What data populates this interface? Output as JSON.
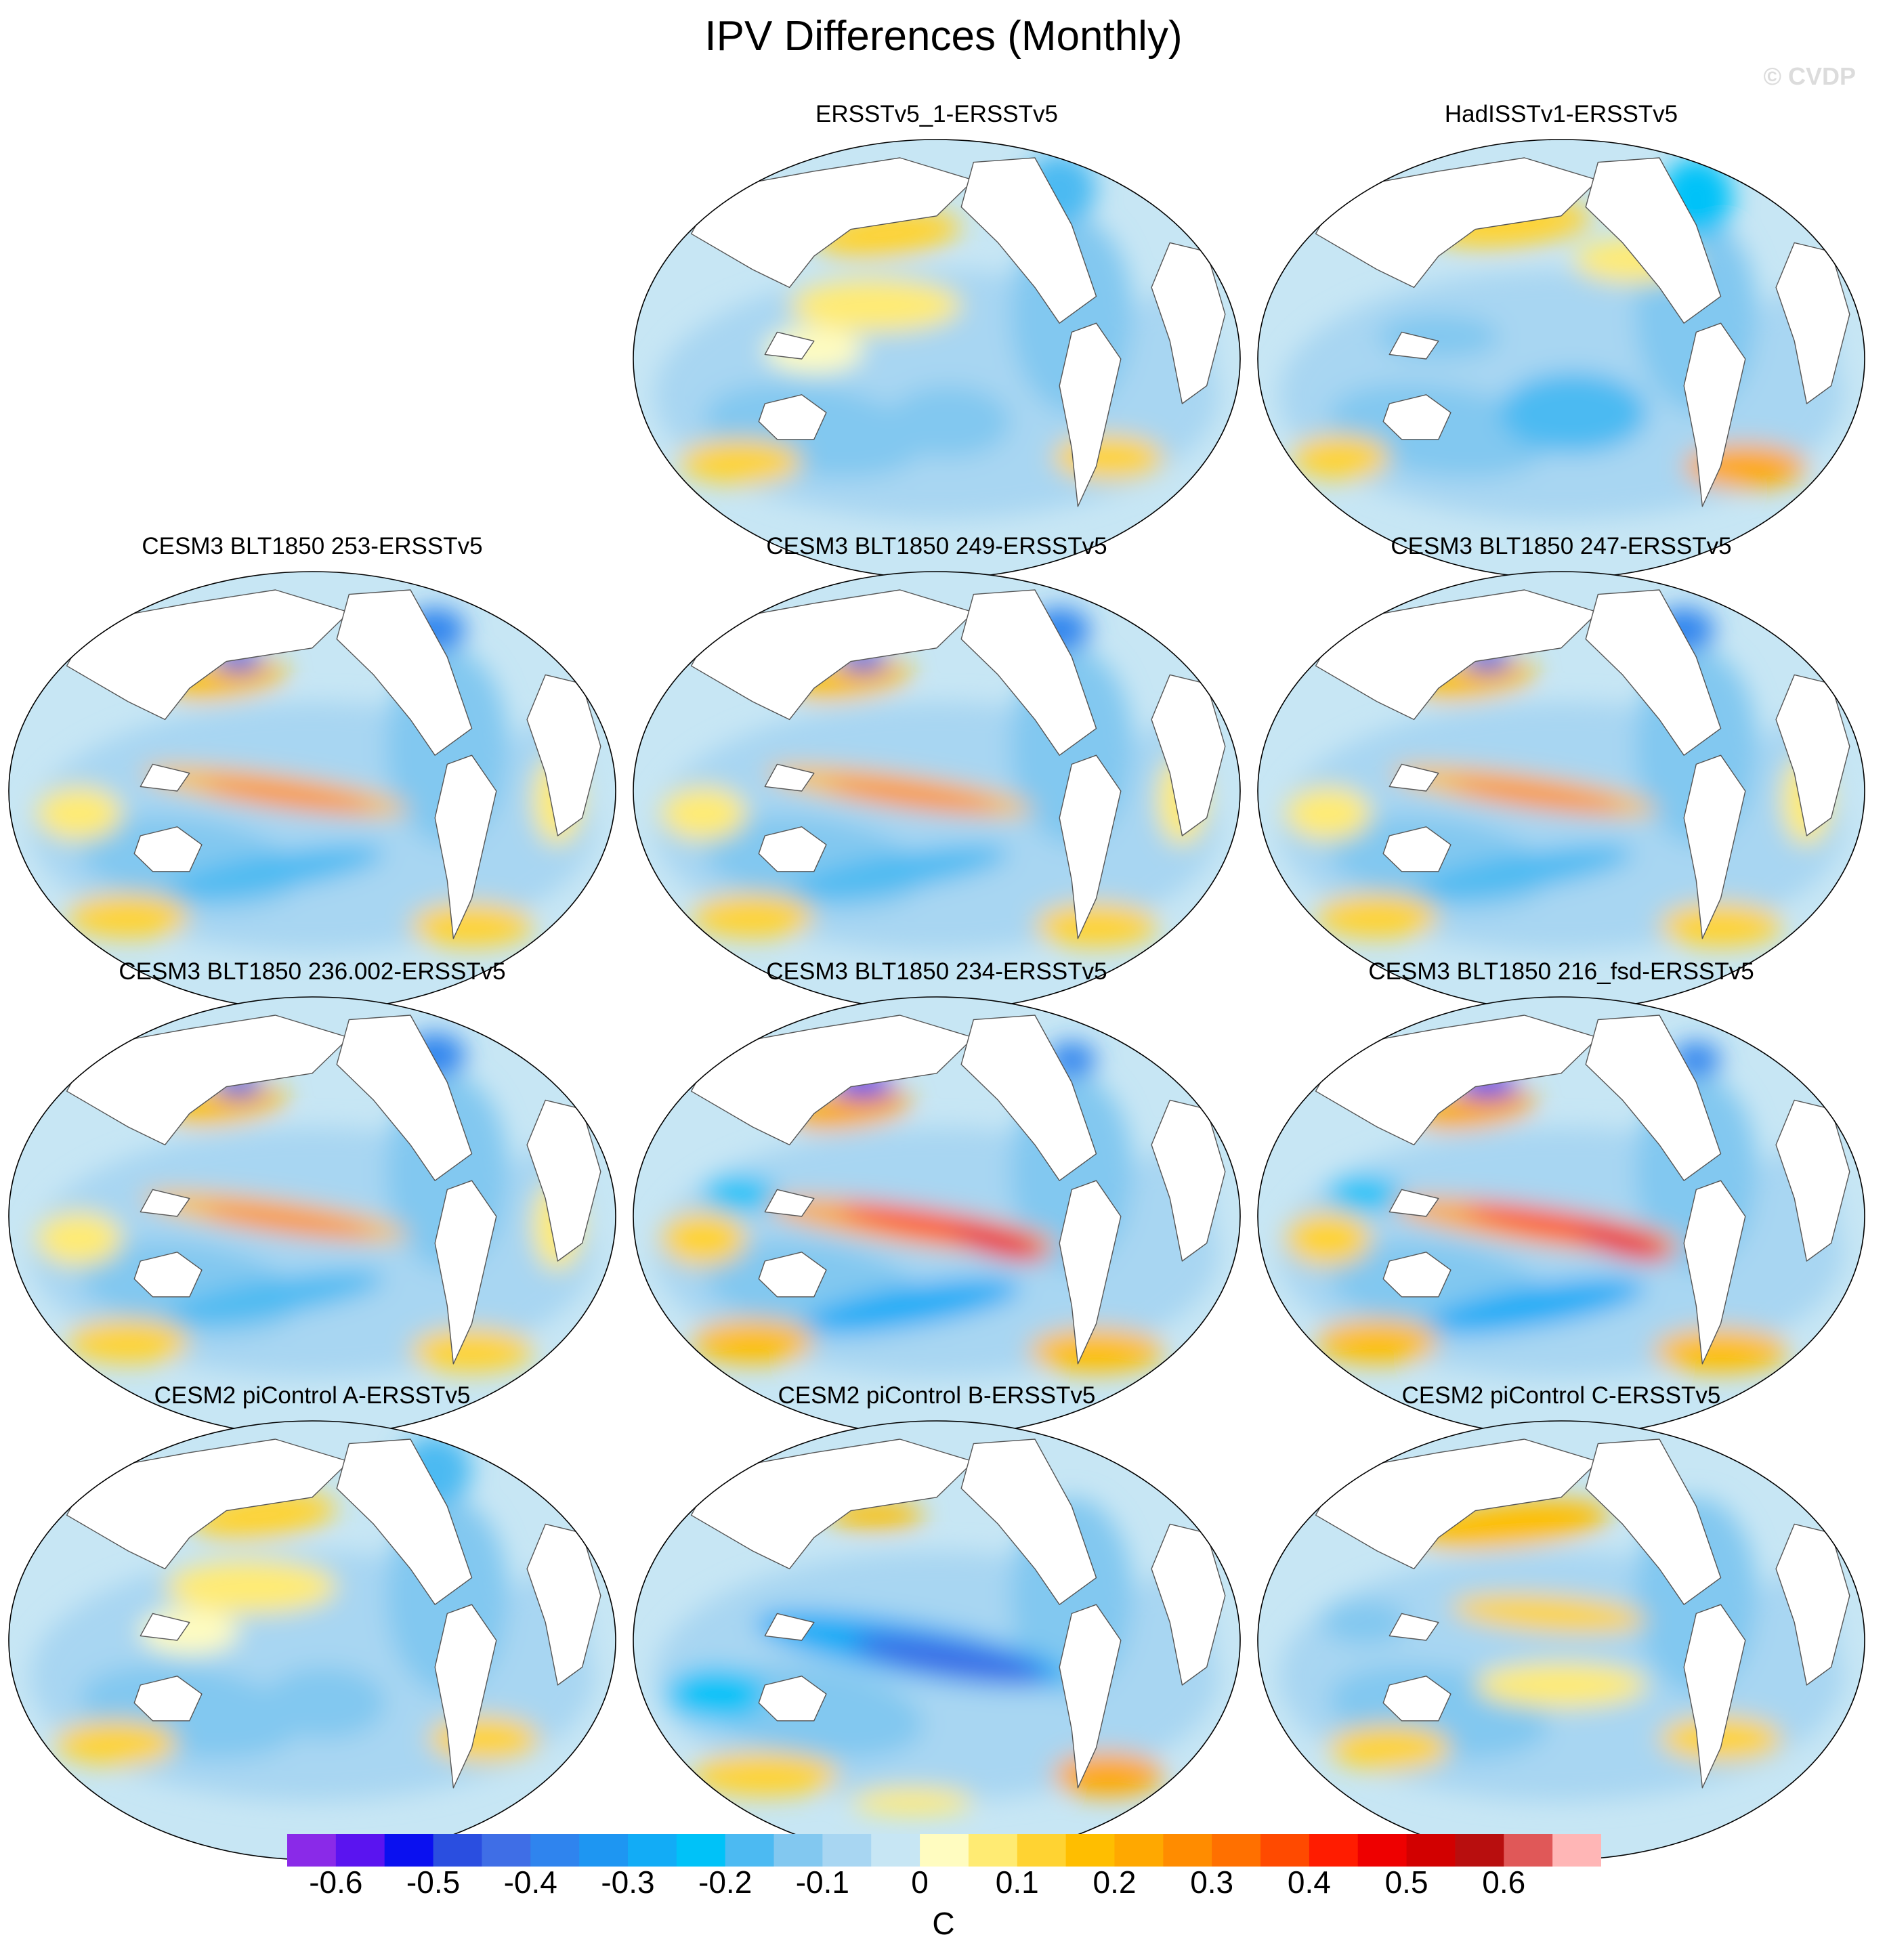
{
  "title": "IPV Differences (Monthly)",
  "watermark": "© CVDP",
  "panels": [
    {
      "title": "ERSSTv5_1-ERSSTv5",
      "pattern": "mixed_weak"
    },
    {
      "title": "HadISSTv1-ERSSTv5",
      "pattern": "mixed_weak_cool"
    },
    {
      "title": "CESM3 BLT1850 253-ERSSTv5",
      "pattern": "el_nino_moderate"
    },
    {
      "title": "CESM3 BLT1850 249-ERSSTv5",
      "pattern": "el_nino_moderate"
    },
    {
      "title": "CESM3 BLT1850 247-ERSSTv5",
      "pattern": "el_nino_moderate"
    },
    {
      "title": "CESM3 BLT1850 236.002-ERSSTv5",
      "pattern": "el_nino_moderate"
    },
    {
      "title": "CESM3 BLT1850 234-ERSSTv5",
      "pattern": "el_nino_strong"
    },
    {
      "title": "CESM3 BLT1850 216_fsd-ERSSTv5",
      "pattern": "el_nino_strong"
    },
    {
      "title": "CESM2 piControl A-ERSSTv5",
      "pattern": "mixed_weak"
    },
    {
      "title": "CESM2 piControl B-ERSSTv5",
      "pattern": "la_nina_like"
    },
    {
      "title": "CESM2 piControl C-ERSSTv5",
      "pattern": "warm_weak"
    }
  ],
  "colorbar": {
    "colors": [
      "#8a2ae8",
      "#5a14f0",
      "#0a10f0",
      "#2a4ee0",
      "#3f6ee6",
      "#2f84ee",
      "#1e96f2",
      "#12acf6",
      "#00c2f8",
      "#4cbaf2",
      "#82c8f0",
      "#a8d6f2",
      "#c7e6f4",
      "#fffcc0",
      "#ffeb73",
      "#ffd332",
      "#ffbe00",
      "#ffa800",
      "#ff8c00",
      "#ff7000",
      "#ff4a00",
      "#ff1c00",
      "#ee0000",
      "#d20000",
      "#b80e0e",
      "#e05858",
      "#ffb6b6"
    ],
    "tick_labels": [
      "-0.6",
      "-0.5",
      "-0.4",
      "-0.3",
      "-0.2",
      "-0.1",
      "0",
      "0.1",
      "0.2",
      "0.3",
      "0.4",
      "0.5",
      "0.6"
    ],
    "units": "C"
  }
}
